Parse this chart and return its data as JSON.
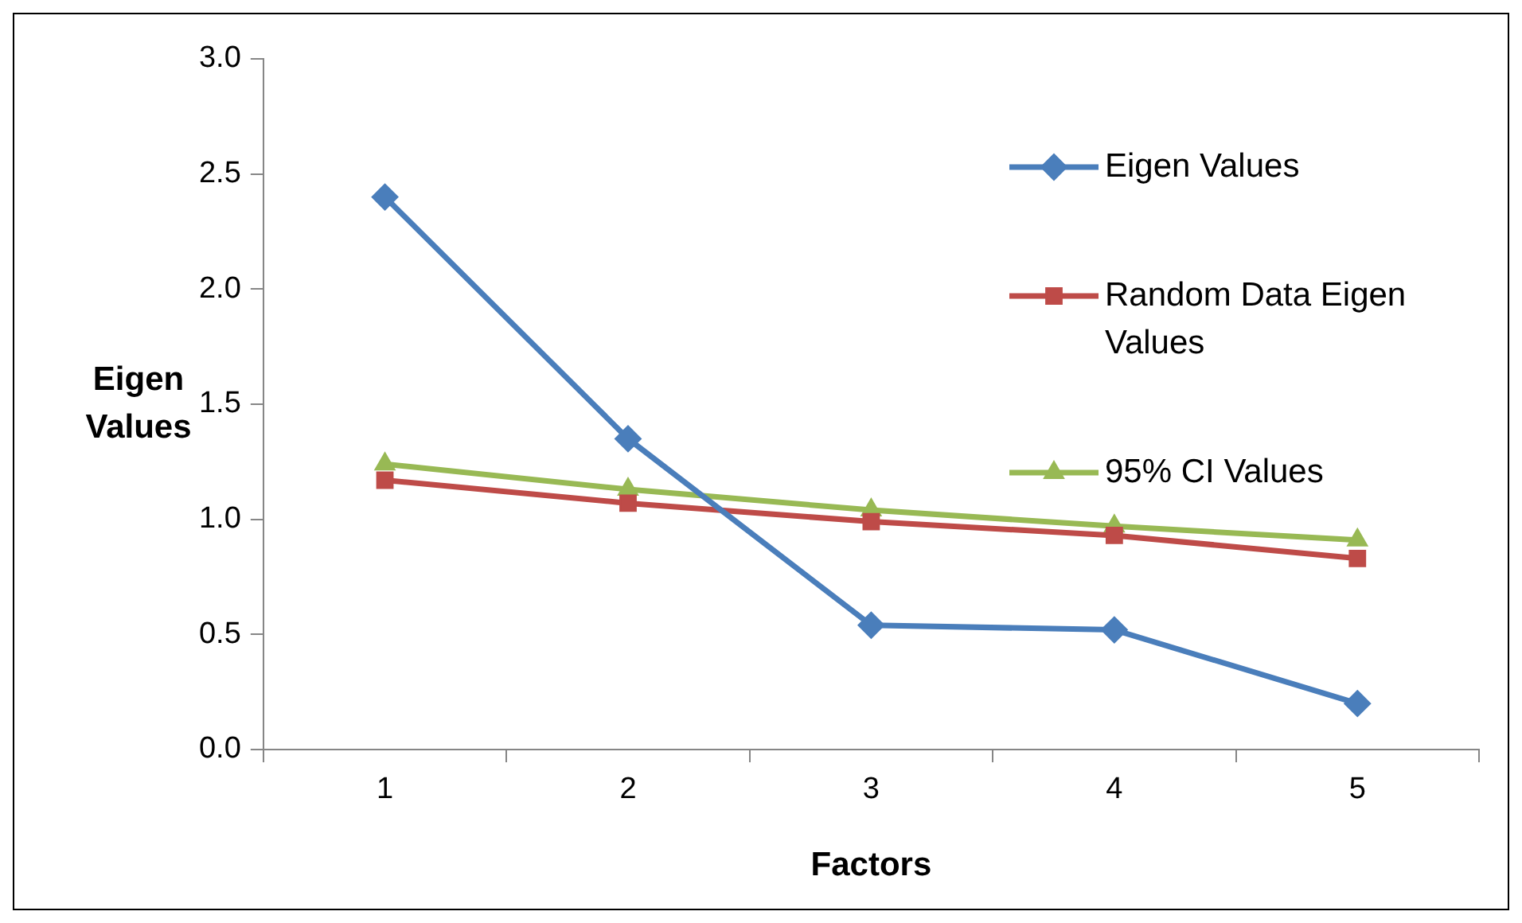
{
  "chart_data": {
    "type": "line",
    "xlabel": "Factors",
    "ylabel": "Eigen Values",
    "categories": [
      "1",
      "2",
      "3",
      "4",
      "5"
    ],
    "series": [
      {
        "name": "Eigen Values",
        "color": "#4a7ebb",
        "marker": "diamond",
        "values": [
          2.4,
          1.35,
          0.54,
          0.52,
          0.2
        ]
      },
      {
        "name": "Random Data Eigen Values",
        "color": "#be4b48",
        "marker": "square",
        "values": [
          1.17,
          1.07,
          0.99,
          0.93,
          0.83
        ]
      },
      {
        "name": "95% CI Values",
        "color": "#98b954",
        "marker": "triangle",
        "values": [
          1.24,
          1.13,
          1.04,
          0.97,
          0.91
        ]
      }
    ],
    "ylim": [
      0,
      3
    ],
    "yticks": [
      {
        "value": 0,
        "label": "0.0"
      },
      {
        "value": 0.5,
        "label": "0.5"
      },
      {
        "value": 1,
        "label": "1.0"
      },
      {
        "value": 1.5,
        "label": "1.5"
      },
      {
        "value": 2,
        "label": "2.0"
      },
      {
        "value": 2.5,
        "label": "2.5"
      },
      {
        "value": 3,
        "label": "3.0"
      }
    ],
    "grid": false,
    "legend": "top right",
    "line_style": "solid"
  }
}
